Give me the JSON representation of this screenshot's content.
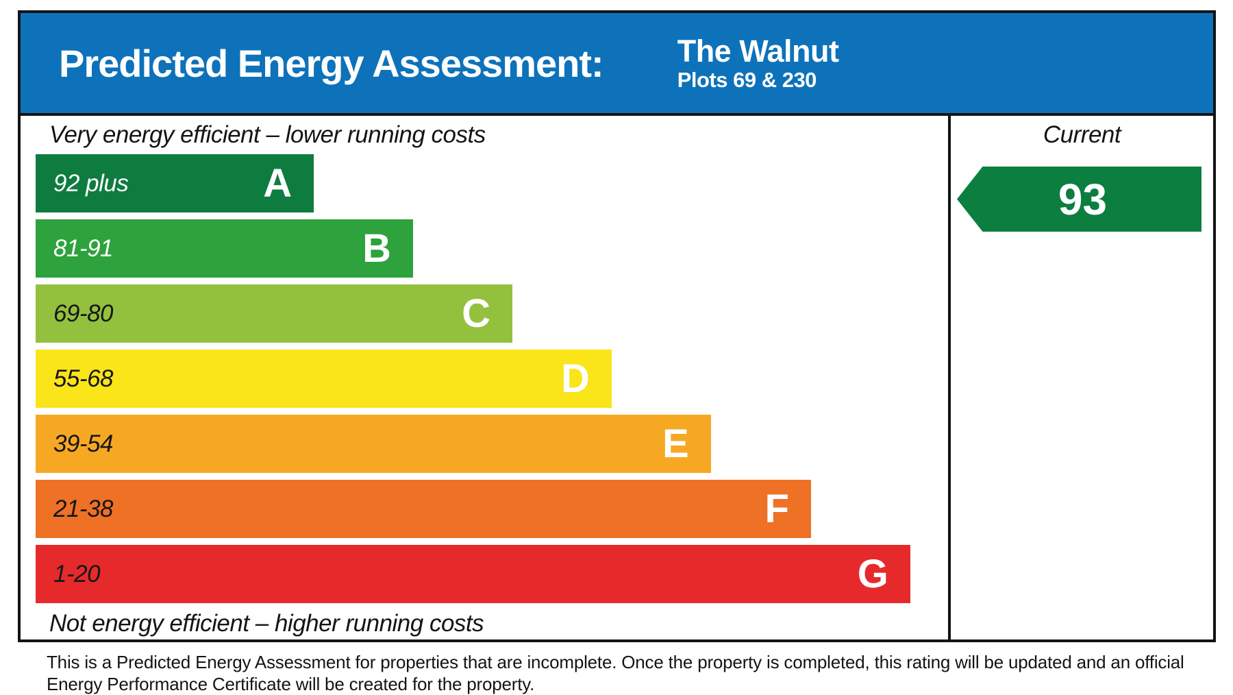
{
  "header": {
    "title": "Predicted Energy Assessment:",
    "property_name": "The Walnut",
    "plots_label": "Plots 69 & 230",
    "bg_color": "#0D72BA",
    "text_color": "#ffffff"
  },
  "chart_data": {
    "type": "bar",
    "title": "Predicted Energy Assessment",
    "top_caption": "Very energy efficient – lower running costs",
    "bottom_caption": "Not energy efficient – higher running costs",
    "column_header": "Current",
    "current_rating": {
      "value": 93,
      "band": "A",
      "arrow_color": "#0B7E40",
      "value_color": "#ffffff"
    },
    "legend_position": "none",
    "grid": false,
    "bands": [
      {
        "letter": "A",
        "range_label": "92 plus",
        "min": 92,
        "color": "#0E7C3F",
        "range_text_color": "#ffffff",
        "width_pct": 30.0
      },
      {
        "letter": "B",
        "range_label": "81-91",
        "min": 81,
        "max": 91,
        "color": "#2EA23C",
        "range_text_color": "#ffffff",
        "width_pct": 40.7
      },
      {
        "letter": "C",
        "range_label": "69-80",
        "min": 69,
        "max": 80,
        "color": "#93C13E",
        "range_text_color": "#161616",
        "width_pct": 51.4
      },
      {
        "letter": "D",
        "range_label": "55-68",
        "min": 55,
        "max": 68,
        "color": "#FAE41A",
        "range_text_color": "#161616",
        "width_pct": 62.1
      },
      {
        "letter": "E",
        "range_label": "39-54",
        "min": 39,
        "max": 54,
        "color": "#F7A823",
        "range_text_color": "#161616",
        "width_pct": 72.8
      },
      {
        "letter": "F",
        "range_label": "21-38",
        "min": 21,
        "max": 38,
        "color": "#EE7126",
        "range_text_color": "#161616",
        "width_pct": 83.6
      },
      {
        "letter": "G",
        "range_label": "1-20",
        "min": 1,
        "max": 20,
        "color": "#E62A2B",
        "range_text_color": "#161616",
        "width_pct": 94.3
      }
    ]
  },
  "footer": {
    "note": "This is a Predicted Energy Assessment for properties that are incomplete. Once the property is completed, this rating will be updated and an official Energy Performance Certificate will be created for the property."
  }
}
